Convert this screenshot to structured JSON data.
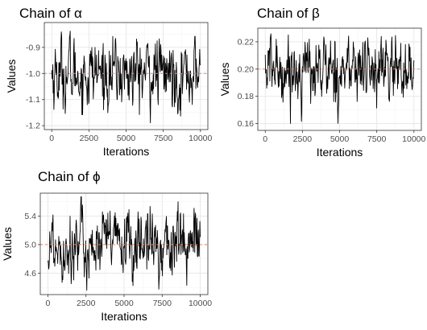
{
  "chart_data": [
    {
      "type": "line",
      "title": "Chain of α",
      "xlabel": "Iterations",
      "ylabel": "Values",
      "xlim": [
        -500,
        10500
      ],
      "ylim": [
        -1.215,
        -0.805
      ],
      "xticks": [
        0,
        2500,
        5000,
        7500,
        10000
      ],
      "xtick_labels": [
        "0",
        "2500",
        "5000",
        "7500",
        "10000"
      ],
      "yticks": [
        -1.2,
        -1.1,
        -1.0,
        -0.9
      ],
      "ytick_labels": [
        "-1.2",
        "-1.1",
        "-1.0",
        "-0.9"
      ],
      "reference_line": -1.0,
      "grid": true,
      "series": [
        {
          "x": [
            0,
            2500,
            5000,
            7500,
            10000
          ],
          "values": [
            -1.05,
            -0.98,
            -1.0,
            -1.02,
            -1.0
          ],
          "mean": -1.0,
          "min": -1.19,
          "max": -0.83
        }
      ]
    },
    {
      "type": "line",
      "title": "Chain of β",
      "xlabel": "Iterations",
      "ylabel": "Values",
      "xlim": [
        -500,
        10500
      ],
      "ylim": [
        0.155,
        0.23
      ],
      "xticks": [
        0,
        2500,
        5000,
        7500,
        10000
      ],
      "xtick_labels": [
        "0",
        "2500",
        "5000",
        "7500",
        "10000"
      ],
      "yticks": [
        0.16,
        0.18,
        0.2,
        0.22
      ],
      "ytick_labels": [
        "0.16",
        "0.18",
        "0.20",
        "0.22"
      ],
      "reference_line": 0.2,
      "grid": true,
      "series": [
        {
          "x": [
            0,
            2500,
            5000,
            7500,
            10000
          ],
          "values": [
            0.2,
            0.2,
            0.2,
            0.205,
            0.2
          ],
          "mean": 0.2,
          "min": 0.16,
          "max": 0.226
        }
      ]
    },
    {
      "type": "line",
      "title": "Chain of ϕ",
      "xlabel": "Iterations",
      "ylabel": "Values",
      "xlim": [
        -500,
        10500
      ],
      "ylim": [
        4.3,
        5.72
      ],
      "xticks": [
        0,
        2500,
        5000,
        7500,
        10000
      ],
      "xtick_labels": [
        "0",
        "2500",
        "5000",
        "7500",
        "10000"
      ],
      "yticks": [
        4.6,
        5.0,
        5.4
      ],
      "ytick_labels": [
        "4.6",
        "5.0",
        "5.4"
      ],
      "reference_line": 5.0,
      "grid": true,
      "series": [
        {
          "x": [
            0,
            2500,
            5000,
            7500,
            10000
          ],
          "values": [
            5.0,
            5.05,
            5.0,
            4.98,
            5.0
          ],
          "mean": 5.0,
          "min": 4.35,
          "max": 5.7
        }
      ]
    }
  ],
  "colors": {
    "trace": "#000000",
    "reference_line": "#e08a72",
    "grid": "#e6e6e6"
  }
}
